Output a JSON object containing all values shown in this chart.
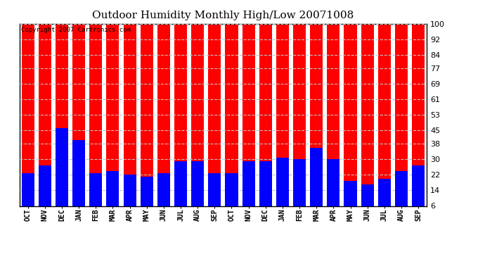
{
  "title_display": "Outdoor Humidity Monthly High/Low 20071008",
  "copyright_text": "Copyright 2007 Cartronics.com",
  "months": [
    "OCT",
    "NOV",
    "DEC",
    "JAN",
    "FEB",
    "MAR",
    "APR",
    "MAY",
    "JUN",
    "JUL",
    "AUG",
    "SEP",
    "OCT",
    "NOV",
    "DEC",
    "JAN",
    "FEB",
    "MAR",
    "APR",
    "MAY",
    "JUN",
    "JUL",
    "AUG",
    "SEP"
  ],
  "highs": [
    100,
    100,
    100,
    100,
    100,
    100,
    100,
    100,
    100,
    100,
    100,
    100,
    100,
    100,
    100,
    100,
    100,
    100,
    100,
    100,
    100,
    100,
    100,
    100
  ],
  "lows": [
    23,
    27,
    46,
    40,
    23,
    24,
    22,
    21,
    23,
    29,
    29,
    23,
    23,
    29,
    29,
    31,
    30,
    36,
    30,
    19,
    17,
    20,
    24,
    27
  ],
  "high_color": "#FF0000",
  "low_color": "#0000FF",
  "bg_color": "#FFFFFF",
  "plot_bg_color": "#FFFFFF",
  "yticks": [
    6,
    14,
    22,
    30,
    38,
    45,
    53,
    61,
    69,
    77,
    84,
    92,
    100
  ],
  "ymin": 6,
  "ymax": 100,
  "grid_color": "#C0C0C0",
  "bar_width": 0.75,
  "copyright_fontsize": 6.5,
  "title_fontsize": 11
}
